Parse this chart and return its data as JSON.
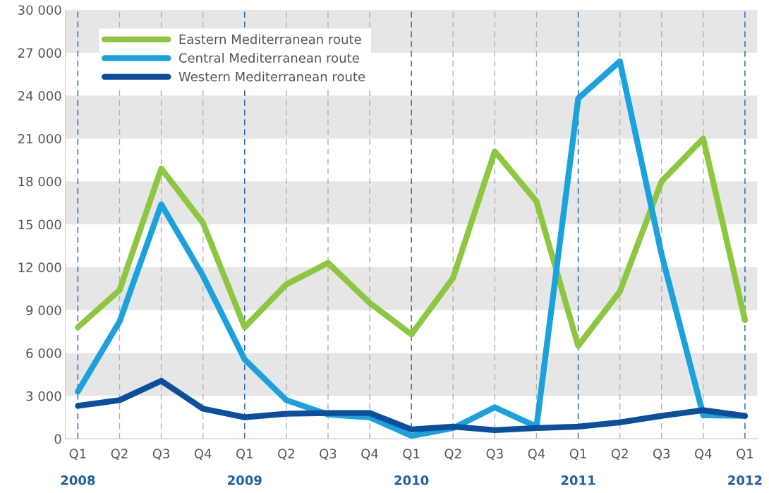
{
  "chart_data": {
    "type": "line",
    "categories": [
      "Q1\n2008",
      "Q2",
      "Q3",
      "Q4",
      "Q1\n2009",
      "Q2",
      "Q3",
      "Q4",
      "Q1\n2010",
      "Q2",
      "Q3",
      "Q4",
      "Q1\n2011",
      "Q2",
      "Q3",
      "Q4",
      "Q1\n2012"
    ],
    "series": [
      {
        "name": "Eastern Mediterranean route",
        "color": "#8dc63f",
        "values": [
          7800,
          10400,
          18900,
          15100,
          7800,
          10800,
          12300,
          9500,
          7300,
          11250,
          20100,
          16600,
          6500,
          10300,
          18000,
          21000,
          8300
        ]
      },
      {
        "name": "Central Mediterranean route",
        "color": "#1ba1dc",
        "values": [
          3300,
          8200,
          16400,
          11400,
          5550,
          2700,
          1700,
          1500,
          200,
          750,
          2200,
          850,
          23800,
          26400,
          12900,
          1650,
          1600
        ]
      },
      {
        "name": "Western Mediterranean route",
        "color": "#0b4f9c",
        "values": [
          2300,
          2700,
          4050,
          2100,
          1500,
          1750,
          1800,
          1800,
          650,
          850,
          600,
          750,
          850,
          1150,
          1600,
          2000,
          1600
        ]
      }
    ],
    "ylim": [
      0,
      30000
    ],
    "yticks": [
      0,
      {
        "value": 3000,
        "label": "3 000"
      },
      {
        "value": 6000,
        "label": "6 000"
      },
      {
        "value": 9000,
        "label": "9 000"
      },
      {
        "value": 12000,
        "label": "12 000"
      },
      {
        "value": 15000,
        "label": "15 000"
      },
      {
        "value": 18000,
        "label": "18 000"
      },
      {
        "value": 21000,
        "label": "21 000"
      },
      {
        "value": 24000,
        "label": "24 000"
      },
      {
        "value": 27000,
        "label": "27 000"
      },
      {
        "value": 30000,
        "label": "30 000"
      }
    ],
    "bands": [
      {
        "axis": "y",
        "from": 3000,
        "to": 6000,
        "color": "#e6e6e6"
      },
      {
        "axis": "y",
        "from": 9000,
        "to": 12000,
        "color": "#e6e6e6"
      },
      {
        "axis": "y",
        "from": 15000,
        "to": 18000,
        "color": "#e6e6e6"
      },
      {
        "axis": "y",
        "from": 21000,
        "to": 24000,
        "color": "#e6e6e6"
      },
      {
        "axis": "y",
        "from": 27000,
        "to": 30000,
        "color": "#e6e6e6"
      }
    ],
    "grid": "x",
    "legend": "top left",
    "marker": "none",
    "line_style": "solid"
  }
}
